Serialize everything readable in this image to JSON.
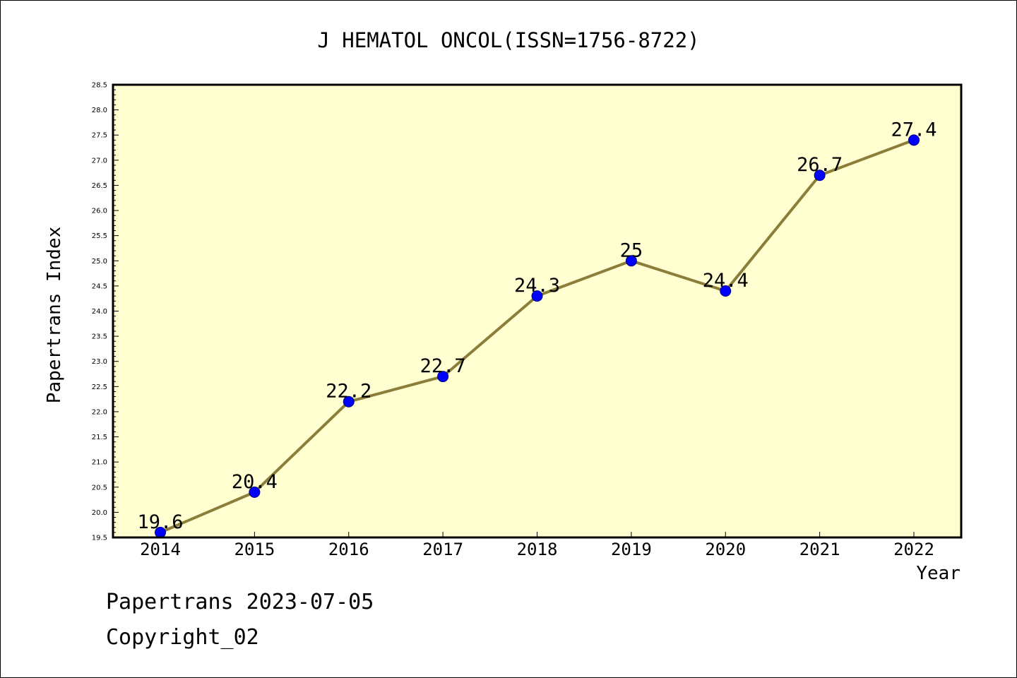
{
  "chart_data": {
    "type": "line",
    "title": "J HEMATOL ONCOL(ISSN=1756-8722)",
    "xlabel": "Year",
    "ylabel": "Papertrans Index",
    "categories": [
      "2014",
      "2015",
      "2016",
      "2017",
      "2018",
      "2019",
      "2020",
      "2021",
      "2022"
    ],
    "values": [
      19.6,
      20.4,
      22.2,
      22.7,
      24.3,
      25,
      24.4,
      26.7,
      27.4
    ],
    "data_labels": [
      "19.6",
      "20.4",
      "22.2",
      "22.7",
      "24.3",
      "25",
      "24.4",
      "26.7",
      "27.4"
    ],
    "ylim": [
      19.5,
      28.5
    ],
    "ytick_labels": [
      "19.5",
      "20.0",
      "20.5",
      "21.0",
      "21.5",
      "22.0",
      "22.5",
      "23.0",
      "23.5",
      "24.0",
      "24.5",
      "25.0",
      "25.5",
      "26.0",
      "26.5",
      "27.0",
      "27.5",
      "28.0",
      "28.5"
    ],
    "grid": false,
    "colors": {
      "plot_background": "#ffffd2",
      "line": "#8b7d3a",
      "marker": "#0000ff",
      "marker_edge": "#00007a"
    }
  },
  "footer": {
    "date_line": "Papertrans 2023-07-05",
    "copyright": "Copyright_02"
  }
}
